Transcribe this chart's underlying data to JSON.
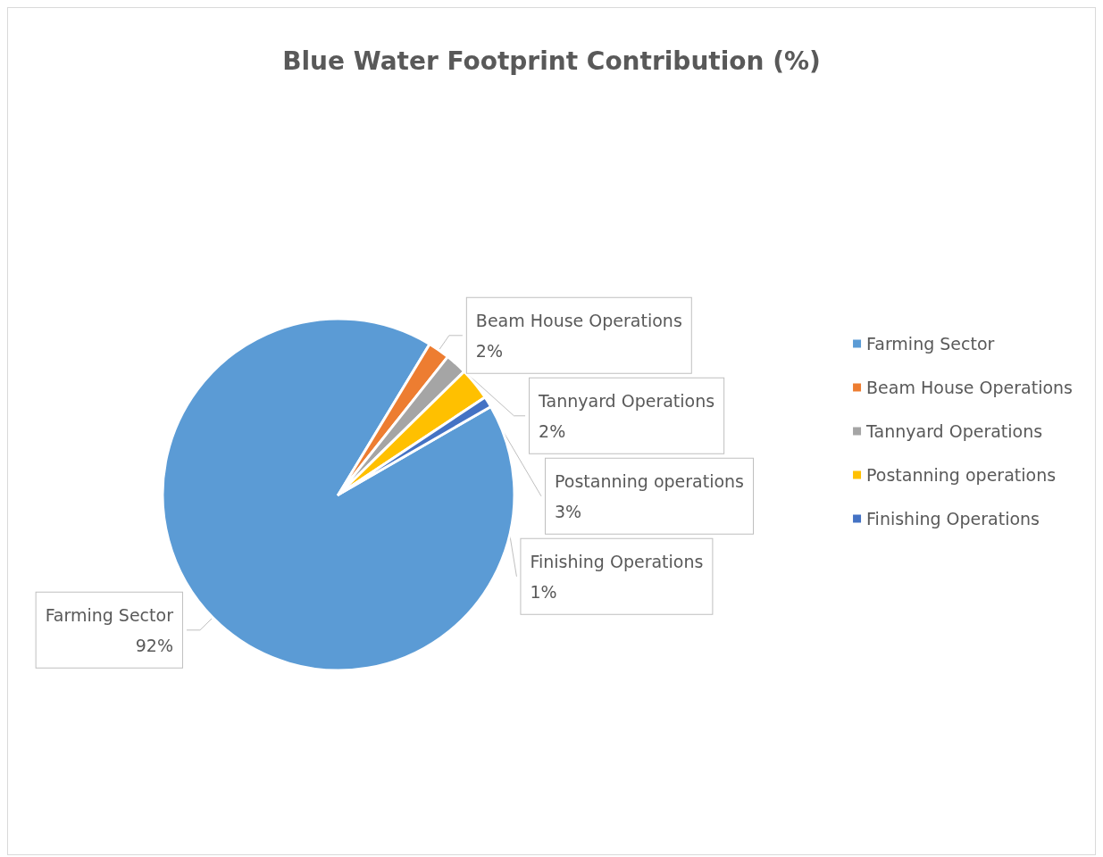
{
  "chart_data": {
    "type": "pie",
    "title": "Blue Water Footprint Contribution (%)",
    "categories": [
      "Farming Sector",
      "Beam House Operations",
      "Tannyard Operations",
      "Postanning operations",
      "Finishing Operations"
    ],
    "values": [
      92,
      2,
      2,
      3,
      1
    ],
    "value_labels": [
      "92%",
      "2%",
      "2%",
      "3%",
      "1%"
    ],
    "colors": [
      "#5b9bd5",
      "#ed7d31",
      "#a5a5a5",
      "#ffc000",
      "#4472c4"
    ],
    "legend": "right"
  }
}
